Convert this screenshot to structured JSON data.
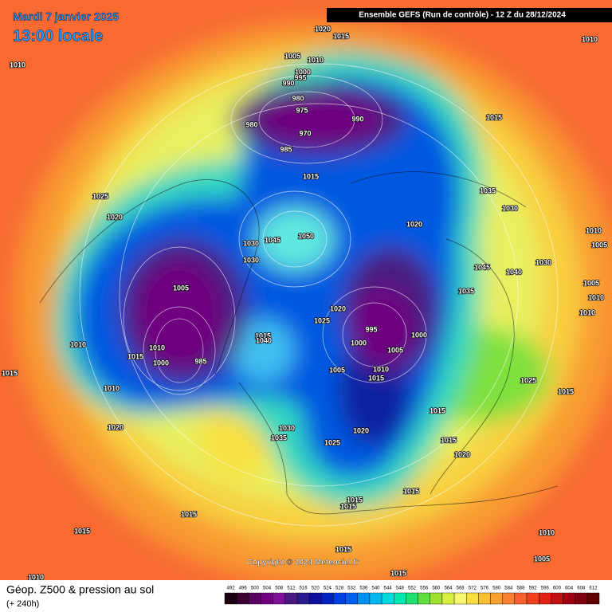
{
  "header": {
    "date": "Mardi 7 janvier 2025",
    "time": "13:00 locale",
    "run": "Ensemble GEFS  (Run de contrôle)  -  12 Z du 28/12/2024"
  },
  "footer": {
    "title": "Géop. Z500 & pression au sol",
    "lead": "(+ 240h)",
    "copyright": "Copyright © 2024 Meteociel.fr"
  },
  "colorbar": {
    "labels": [
      492,
      496,
      500,
      504,
      508,
      512,
      516,
      520,
      524,
      528,
      532,
      536,
      540,
      544,
      548,
      552,
      556,
      560,
      564,
      568,
      572,
      576,
      580,
      584,
      588,
      592,
      596,
      600,
      604,
      608,
      612
    ]
  },
  "isobars": {
    "labels": [
      1020,
      1015,
      1010,
      1010,
      1005,
      1010,
      1000,
      995,
      990,
      980,
      975,
      990,
      980,
      970,
      985,
      1015,
      1015,
      1035,
      1025,
      1020,
      1030,
      1020,
      1050,
      1045,
      1010,
      1030,
      1005,
      1030,
      1030,
      1045,
      1040,
      1005,
      1005,
      1035,
      1010,
      1020,
      1010,
      1025,
      995,
      1000,
      1000,
      1015,
      1040,
      1010,
      1010,
      1005,
      1015,
      1000,
      985,
      1005,
      1010,
      1015,
      1025,
      1015,
      1010,
      1015,
      1015,
      1020,
      1030,
      1020,
      1035,
      1025,
      1015,
      1020,
      1015,
      1015,
      1015,
      1015,
      1015,
      1010,
      1015,
      1005,
      1015,
      1010
    ]
  }
}
